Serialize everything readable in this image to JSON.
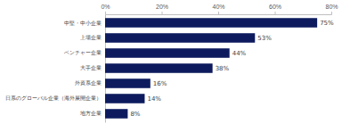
{
  "chart_data": {
    "type": "bar",
    "orientation": "horizontal",
    "categories": [
      "中堅・中小企業",
      "上場企業",
      "ベンチャー企業",
      "大手企業",
      "外資系企業",
      "日系のグローバル企業（海外展開企業）",
      "地方企業"
    ],
    "values": [
      75,
      53,
      44,
      38,
      16,
      14,
      8
    ],
    "value_labels": [
      "75%",
      "53%",
      "44%",
      "38%",
      "16%",
      "14%",
      "8%"
    ],
    "color": "#0d1b5e",
    "xlim": [
      0,
      80
    ],
    "xticks": [
      {
        "value": 0,
        "label": "0%"
      },
      {
        "value": 20,
        "label": "20%"
      },
      {
        "value": 40,
        "label": "40%"
      },
      {
        "value": 60,
        "label": "60%"
      },
      {
        "value": 80,
        "label": "80%"
      }
    ],
    "data_labels": true
  }
}
